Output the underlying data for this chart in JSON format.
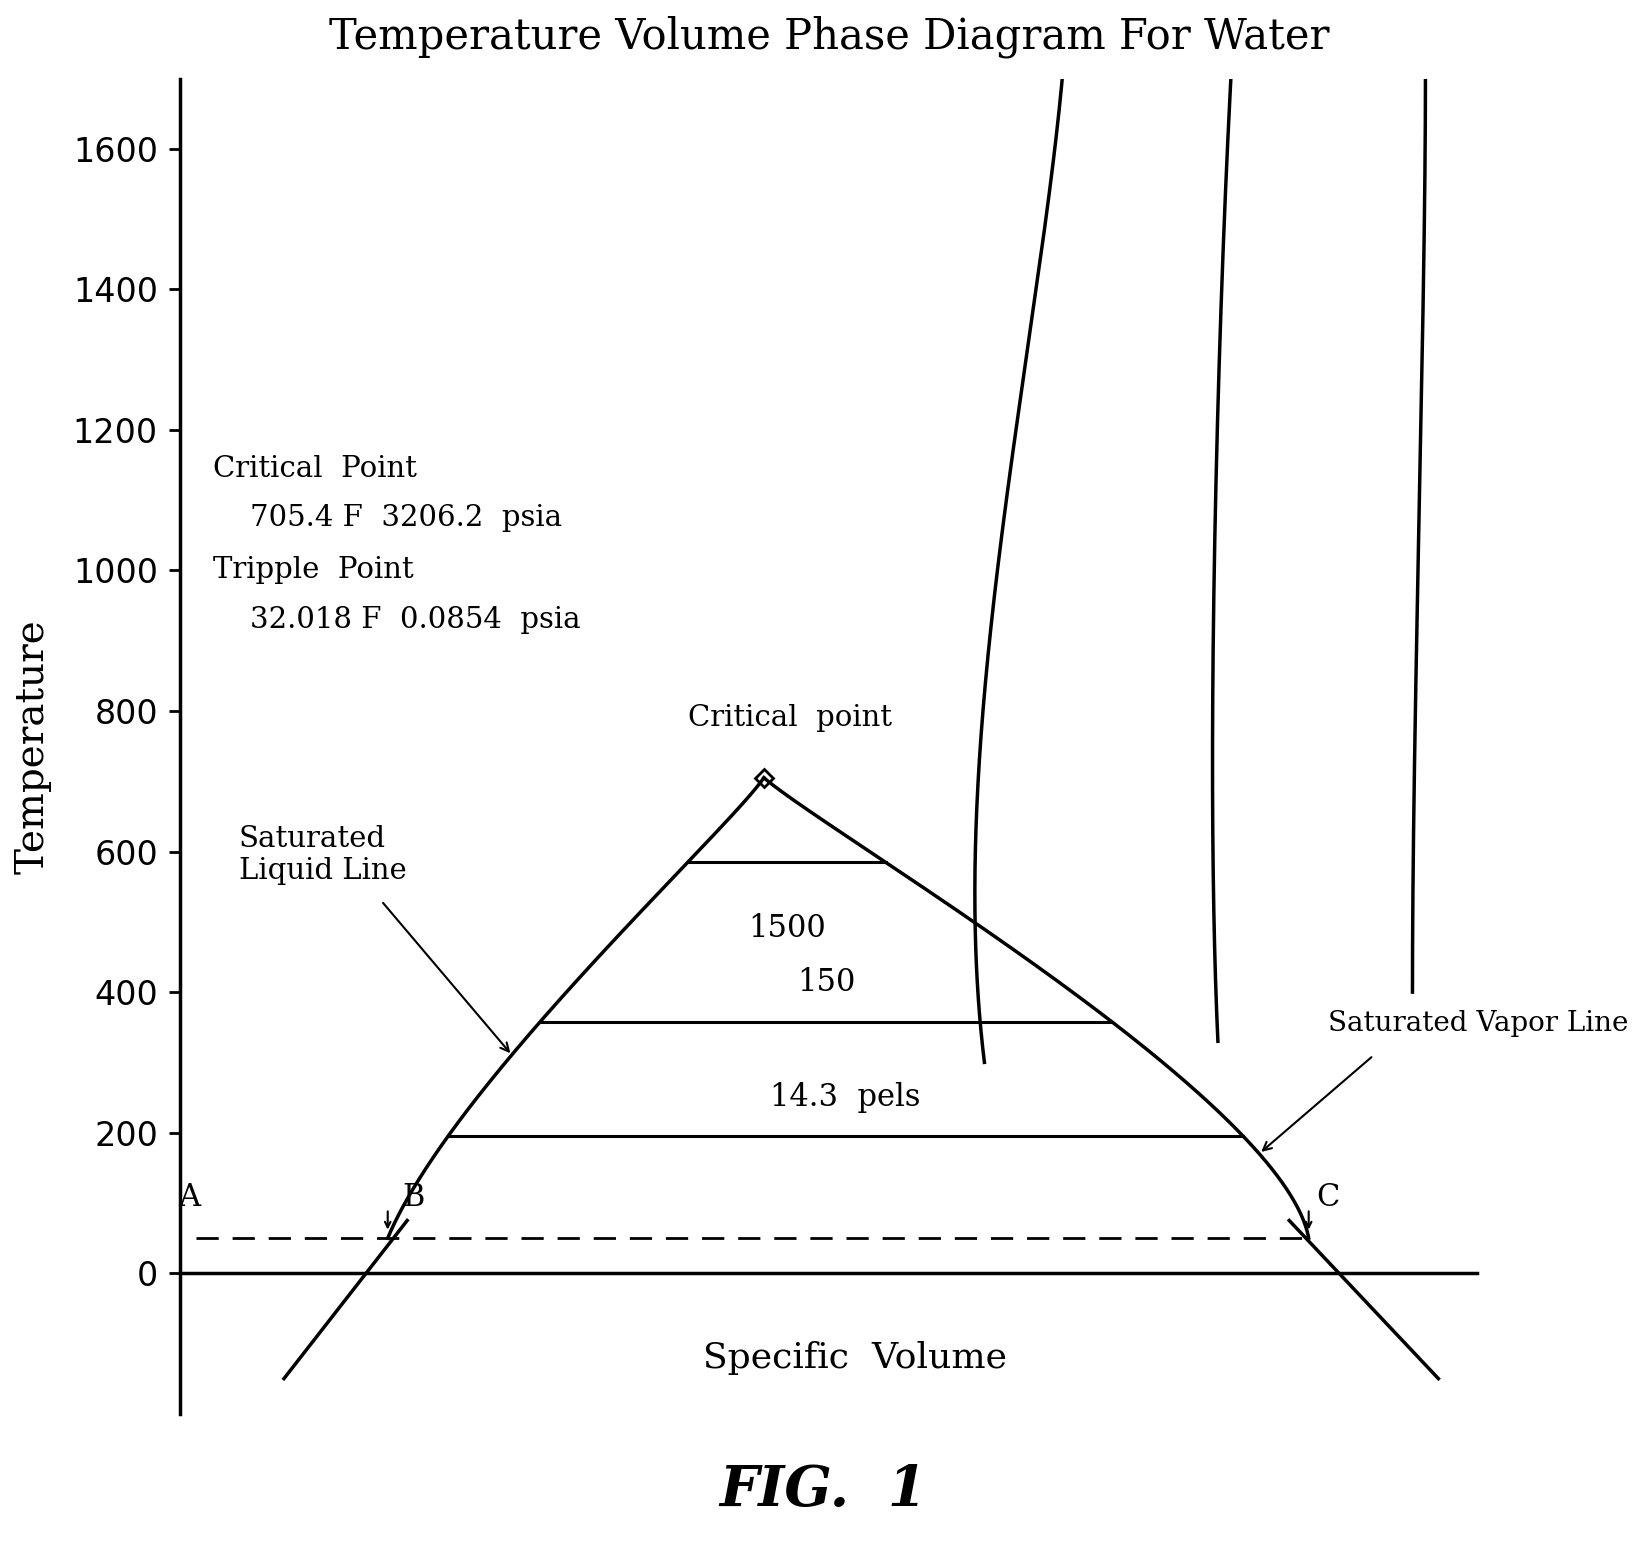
{
  "title": "Temperature Volume Phase Diagram For Water",
  "xlabel": "Specific  Volume",
  "ylabel": "Temperature",
  "figcaption": "FIG.  1",
  "ylim": [
    -200,
    1700
  ],
  "xlim": [
    0,
    10
  ],
  "yticks": [
    0,
    200,
    400,
    600,
    800,
    1000,
    1200,
    1400,
    1600
  ],
  "bg_color": "#ffffff",
  "line_color": "#000000",
  "annotation_critical_point_label": "Critical  Point",
  "annotation_critical_point_value": "    705.4 F  3206.2  psia",
  "annotation_triple_point_label": "Tripple  Point",
  "annotation_triple_point_value": "    32.018 F  0.0854  psia",
  "label_saturated_liquid": "Saturated\nLiquid Line",
  "label_saturated_vapor": "Saturated Vapor Line",
  "label_critical_point_diagram": "Critical  point",
  "label_A": "A",
  "label_B": "B",
  "label_C": "C",
  "apex_x": 4.5,
  "apex_y": 705,
  "left_base_x": 1.6,
  "left_base_y": 50,
  "right_base_x": 8.7,
  "right_base_y": 50,
  "isobar_1500_y": 585,
  "isobar_150_y": 358,
  "isobar_143_y": 195,
  "triple_line_y": 50,
  "point_A_x": 0.12,
  "point_A_y": 50
}
